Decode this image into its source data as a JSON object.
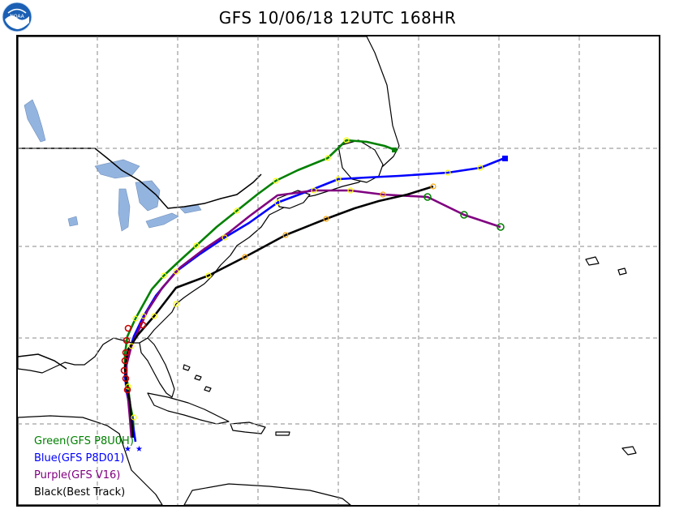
{
  "header": {
    "title": "GFS 10/06/18 12UTC 168HR",
    "logo_text": "NOAA"
  },
  "colors": {
    "land_fill": "#ffffff",
    "coast": "#000000",
    "lake": "#94b4e0",
    "grid": "#888888",
    "green": "#008000",
    "blue": "#0000ff",
    "purple": "#800080",
    "black": "#000000",
    "yellow_marker": "#ffff00",
    "orange_marker": "#ffa500",
    "red_marker": "#cc0000"
  },
  "legend": [
    {
      "label": "Green(GFS P8U0H)",
      "color": "#008000"
    },
    {
      "label": "Blue(GFS P8D01)",
      "color": "#0000ff"
    },
    {
      "label": "Purple(GFS V16)",
      "color": "#800080"
    },
    {
      "label": "Black(Best Track)",
      "color": "#000000"
    }
  ],
  "tracks": [
    {
      "name": "Green(GFS P8U0H)",
      "color": "#008000"
    },
    {
      "name": "Blue(GFS P8D01)",
      "color": "#0000ff"
    },
    {
      "name": "Purple(GFS V16)",
      "color": "#800080"
    },
    {
      "name": "Black(Best Track)",
      "color": "#000000"
    }
  ]
}
